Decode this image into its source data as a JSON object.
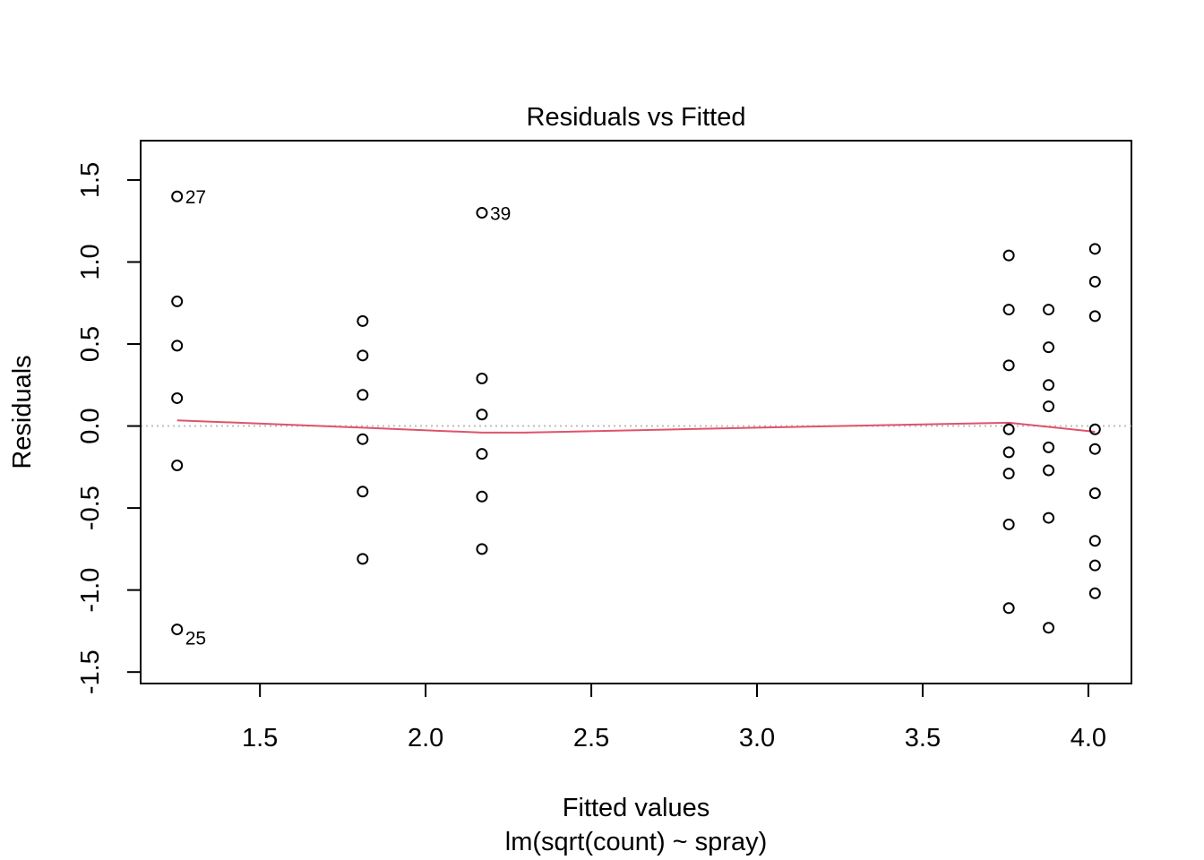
{
  "chart_data": {
    "type": "scatter",
    "title": "Residuals vs Fitted",
    "xlabel": "Fitted values",
    "subtitle": "lm(sqrt(count) ~ spray)",
    "ylabel": "Residuals",
    "xlim": [
      1.14,
      4.13
    ],
    "ylim": [
      -1.57,
      1.74
    ],
    "x_ticks": [
      1.5,
      2.0,
      2.5,
      3.0,
      3.5,
      4.0
    ],
    "x_tick_labels": [
      "1.5",
      "2.0",
      "2.5",
      "3.0",
      "3.5",
      "4.0"
    ],
    "y_ticks": [
      -1.5,
      -1.0,
      -0.5,
      0.0,
      0.5,
      1.0,
      1.5
    ],
    "y_tick_labels": [
      "-1.5",
      "-1.0",
      "-0.5",
      "0.0",
      "0.5",
      "1.0",
      "1.5"
    ],
    "grid": false,
    "reference_line": {
      "y": 0.0,
      "style": "dotted",
      "color": "#bdbdbd"
    },
    "smoother_color": "#df536b",
    "point_color": "#000000",
    "points": [
      {
        "x": 1.25,
        "y": 1.4,
        "label": "27"
      },
      {
        "x": 1.25,
        "y": 0.76
      },
      {
        "x": 1.25,
        "y": 0.49
      },
      {
        "x": 1.25,
        "y": 0.17
      },
      {
        "x": 1.25,
        "y": -0.24
      },
      {
        "x": 1.25,
        "y": -1.24,
        "label": "25"
      },
      {
        "x": 1.81,
        "y": 0.64
      },
      {
        "x": 1.81,
        "y": 0.43
      },
      {
        "x": 1.81,
        "y": 0.19
      },
      {
        "x": 1.81,
        "y": -0.08
      },
      {
        "x": 1.81,
        "y": -0.4
      },
      {
        "x": 1.81,
        "y": -0.81
      },
      {
        "x": 2.17,
        "y": 1.3,
        "label": "39"
      },
      {
        "x": 2.17,
        "y": 0.29
      },
      {
        "x": 2.17,
        "y": 0.07
      },
      {
        "x": 2.17,
        "y": -0.17
      },
      {
        "x": 2.17,
        "y": -0.43
      },
      {
        "x": 2.17,
        "y": -0.75
      },
      {
        "x": 3.76,
        "y": 1.04
      },
      {
        "x": 3.76,
        "y": 0.71
      },
      {
        "x": 3.76,
        "y": 0.37
      },
      {
        "x": 3.76,
        "y": -0.02
      },
      {
        "x": 3.76,
        "y": -0.16
      },
      {
        "x": 3.76,
        "y": -0.29
      },
      {
        "x": 3.76,
        "y": -0.6
      },
      {
        "x": 3.76,
        "y": -1.11
      },
      {
        "x": 3.88,
        "y": 0.71
      },
      {
        "x": 3.88,
        "y": 0.48
      },
      {
        "x": 3.88,
        "y": 0.25
      },
      {
        "x": 3.88,
        "y": 0.12
      },
      {
        "x": 3.88,
        "y": -0.13
      },
      {
        "x": 3.88,
        "y": -0.27
      },
      {
        "x": 3.88,
        "y": -0.56
      },
      {
        "x": 3.88,
        "y": -1.23
      },
      {
        "x": 4.02,
        "y": 1.08
      },
      {
        "x": 4.02,
        "y": 0.88
      },
      {
        "x": 4.02,
        "y": 0.67
      },
      {
        "x": 4.02,
        "y": -0.02
      },
      {
        "x": 4.02,
        "y": -0.14
      },
      {
        "x": 4.02,
        "y": -0.41
      },
      {
        "x": 4.02,
        "y": -0.7
      },
      {
        "x": 4.02,
        "y": -0.85
      },
      {
        "x": 4.02,
        "y": -1.02
      }
    ],
    "smoother": [
      {
        "x": 1.25,
        "y": 0.035
      },
      {
        "x": 1.81,
        "y": -0.01
      },
      {
        "x": 2.17,
        "y": -0.04
      },
      {
        "x": 2.3,
        "y": -0.04
      },
      {
        "x": 3.0,
        "y": -0.01
      },
      {
        "x": 3.5,
        "y": 0.01
      },
      {
        "x": 3.76,
        "y": 0.02
      },
      {
        "x": 3.88,
        "y": -0.005
      },
      {
        "x": 4.02,
        "y": -0.035
      }
    ]
  }
}
